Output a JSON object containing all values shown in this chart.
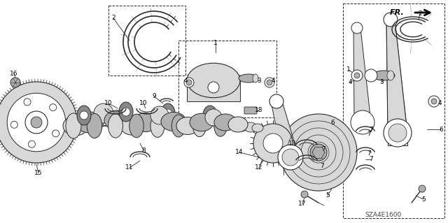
{
  "bg_color": "#ffffff",
  "line_color": "#2a2a2a",
  "code": "SZA4E1600",
  "fig_width": 6.4,
  "fig_height": 3.19,
  "dpi": 100,
  "gray_light": "#d8d8d8",
  "gray_mid": "#b0b0b0",
  "gray_dark": "#888888",
  "label_fs": 7.0,
  "label_fs_sm": 6.5
}
